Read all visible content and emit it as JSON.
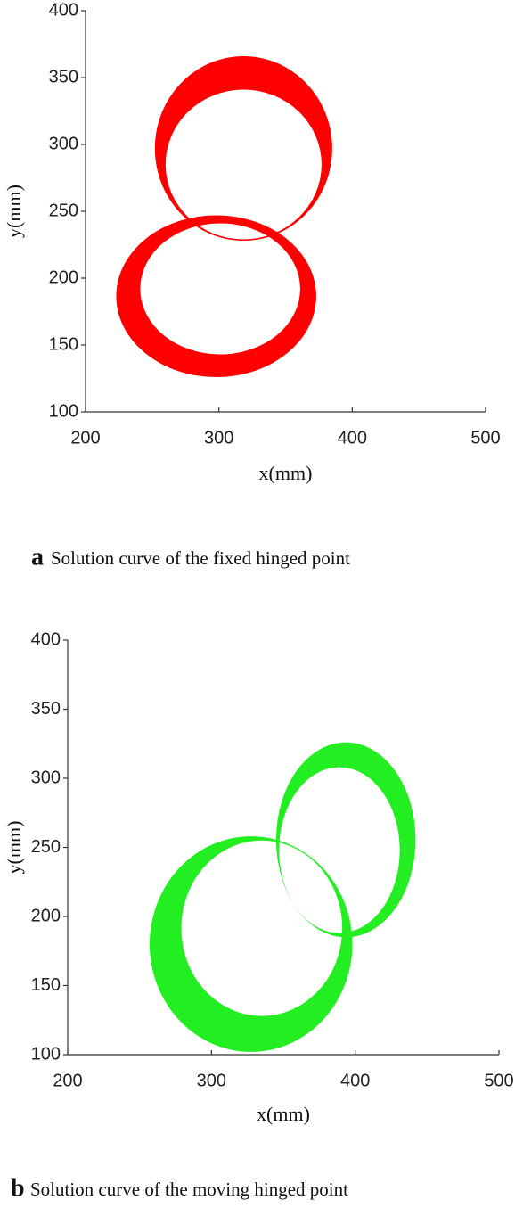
{
  "chart_data": [
    {
      "type": "ring",
      "xlabel": "x(mm)",
      "ylabel": "y(mm)",
      "caption_label": "a",
      "caption": "Solution curve of the fixed hinged point",
      "xlim": [
        200,
        500
      ],
      "xticks": [
        200,
        300,
        400,
        500
      ],
      "ylim": [
        100,
        400
      ],
      "yticks": [
        100,
        150,
        200,
        250,
        300,
        350,
        400
      ],
      "color": "#ff0000",
      "rings": [
        {
          "outer": [
            318.5,
            297,
            66.5,
            69
          ],
          "inner": [
            318.5,
            285,
            58.5,
            56
          ]
        },
        {
          "outer": [
            298,
            186.5,
            75,
            60.5
          ],
          "inner": [
            301,
            192,
            60,
            49
          ]
        }
      ]
    },
    {
      "type": "ring",
      "xlabel": "x(mm)",
      "ylabel": "y(mm)",
      "caption_label": "b",
      "caption": "Solution curve of the moving hinged point",
      "xlim": [
        200,
        500
      ],
      "xticks": [
        200,
        300,
        400,
        500
      ],
      "ylim": [
        100,
        400
      ],
      "yticks": [
        100,
        150,
        200,
        250,
        300,
        350,
        400
      ],
      "color": "#22ee22",
      "rings": [
        {
          "outer": [
            393.5,
            255.5,
            48.5,
            70.5
          ],
          "inner": [
            389,
            248,
            42,
            60
          ]
        },
        {
          "outer": [
            327.5,
            180,
            70.5,
            78
          ],
          "inner": [
            335,
            191.5,
            56,
            63.5
          ]
        }
      ]
    }
  ]
}
